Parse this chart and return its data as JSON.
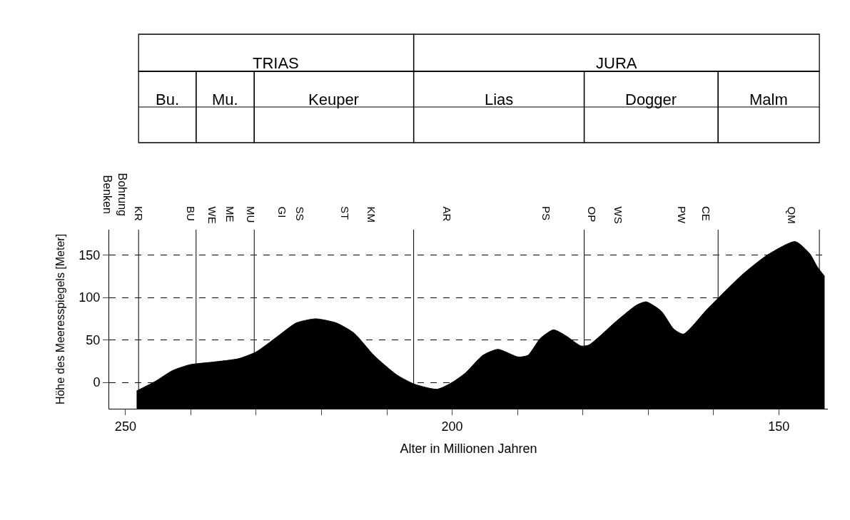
{
  "chart_data": {
    "type": "area",
    "xlabel": "Alter in Millionen Jahren",
    "ylabel": "Höhe des Meeresspiegels [Meter]",
    "x": [
      248.3,
      245.5,
      242.8,
      240.1,
      236.6,
      232.7,
      230,
      226.6,
      223.9,
      220.9,
      217.7,
      215,
      212,
      208.5,
      205.8,
      202.3,
      200,
      198,
      195.3,
      193,
      189.9,
      188.4,
      186.5,
      184.5,
      182.6,
      180.3,
      179.1,
      174.9,
      171.8,
      170.3,
      168,
      166.1,
      164.6,
      161,
      155.6,
      151.8,
      147.5,
      145.3,
      144.1,
      143
    ],
    "series": [
      {
        "color": "#000000",
        "values": [
          -10,
          1,
          14,
          21,
          24,
          28,
          36,
          55,
          70,
          75,
          70,
          58,
          32,
          9,
          -2,
          -8,
          0,
          11,
          32,
          39,
          30,
          32,
          52,
          62,
          55,
          43,
          44,
          72,
          91,
          95,
          84,
          63,
          57,
          86,
          127,
          150,
          166,
          152,
          136,
          125
        ]
      }
    ],
    "xlim": [
      252.5,
      142.5
    ],
    "ylim": [
      -31,
      180
    ],
    "xticks": [
      250,
      {
        "value": 240,
        "label": null
      },
      {
        "value": 230,
        "label": null
      },
      {
        "value": 220,
        "label": null
      },
      {
        "value": 210,
        "label": null
      },
      200,
      {
        "value": 190,
        "label": null
      },
      {
        "value": 180,
        "label": null
      },
      {
        "value": 170,
        "label": null
      },
      {
        "value": 160,
        "label": null
      },
      150
    ],
    "yticks": [
      0,
      50,
      100,
      150
    ],
    "grid": "y",
    "ref_lines": [
      {
        "axis": "x",
        "value": 248,
        "color": "#000000"
      },
      {
        "axis": "x",
        "value": 239.2,
        "color": "#000000"
      },
      {
        "axis": "x",
        "value": 230.3,
        "color": "#000000"
      },
      {
        "axis": "x",
        "value": 205.9,
        "color": "#000000"
      },
      {
        "axis": "x",
        "value": 179.8,
        "color": "#000000"
      },
      {
        "axis": "x",
        "value": 159.3,
        "color": "#000000"
      },
      {
        "axis": "x",
        "value": 143.8,
        "color": "#000000"
      }
    ],
    "annotations": [
      "TRIAS",
      "JURA",
      "Bu.",
      "Mu.",
      "Keuper",
      "Lias",
      "Dogger",
      "Malm",
      "Bohrung\nBenken",
      "KR",
      "BU",
      "WE",
      "ME",
      "MU",
      "GI",
      "SS",
      "ST",
      "KM",
      "AR",
      "PS",
      "OP",
      "WS",
      "PW",
      "CE",
      "QM"
    ]
  }
}
